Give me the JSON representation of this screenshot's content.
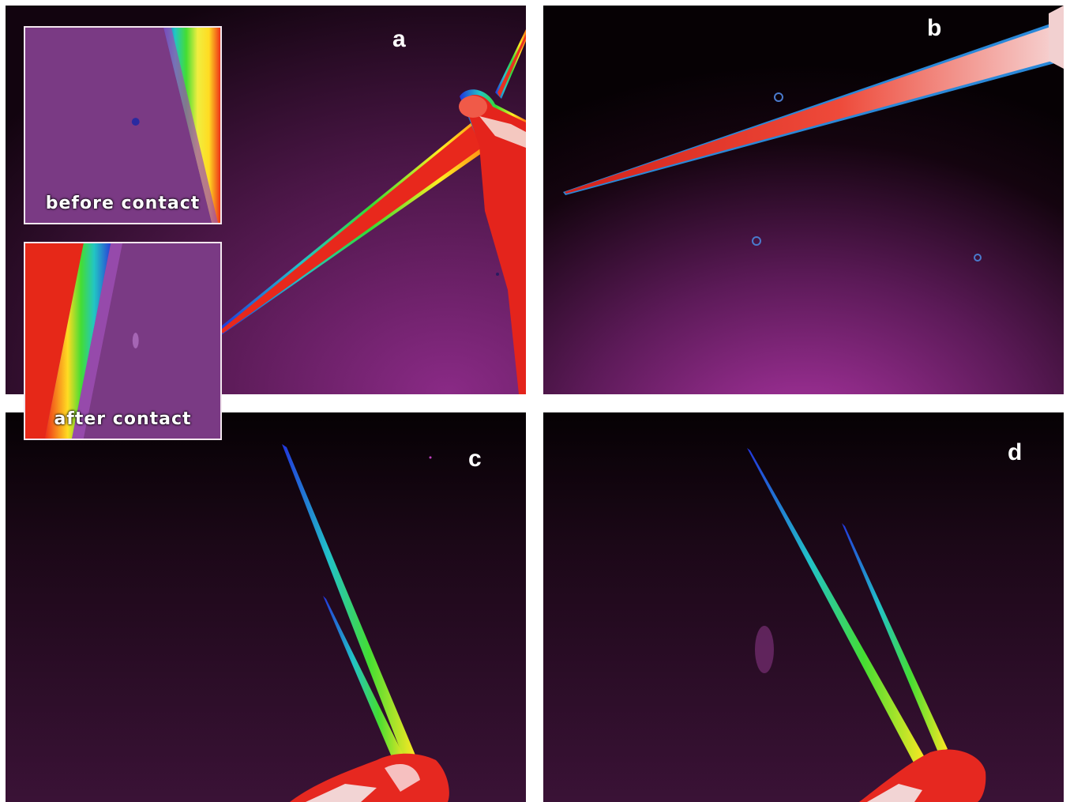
{
  "figure": {
    "panels": [
      {
        "label": "a"
      },
      {
        "label": "b"
      },
      {
        "label": "c"
      },
      {
        "label": "d"
      }
    ],
    "insets": {
      "before": "before contact",
      "after": "after contact"
    }
  }
}
